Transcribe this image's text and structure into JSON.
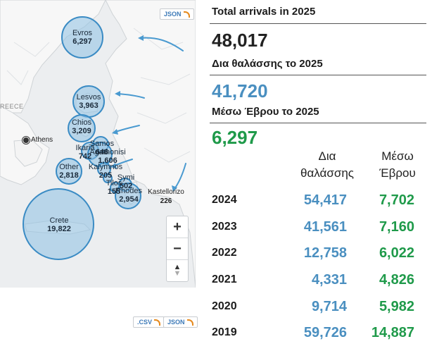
{
  "map": {
    "json_label": "JSON",
    "csv_label": ".CSV",
    "json_label_bottom": "JSON",
    "region_label": "REECE",
    "city_athens": "Athens",
    "kastellorizo_label": "Kastellorizo",
    "kastellorizo_value": "226",
    "zoom_in": "+",
    "zoom_out": "−",
    "reset_up": "▲",
    "reset_down": "▼",
    "bubbles": [
      {
        "name": "Evros",
        "value": "6,297"
      },
      {
        "name": "Lesvos",
        "value": "3,963"
      },
      {
        "name": "Chios",
        "value": "3,209"
      },
      {
        "name": "Samos",
        "value": "646"
      },
      {
        "name": "Ikaria",
        "value": "742"
      },
      {
        "name": "Agathonisi",
        "value": "1,606"
      },
      {
        "name": "Kalymnos",
        "value": "205"
      },
      {
        "name": "Other",
        "value": "2,818"
      },
      {
        "name": "Symi",
        "value": "502"
      },
      {
        "name": "Tilos",
        "value": "155"
      },
      {
        "name": "Rhodes",
        "value": "2,954"
      },
      {
        "name": "Crete",
        "value": "19,822"
      }
    ]
  },
  "stats": {
    "total_title": "Total arrivals in 2025",
    "total_value": "48,017",
    "sea_title": "Δια θαλάσσης το 2025",
    "sea_value": "41,720",
    "evros_title": "Μέσω Έβρου το 2025",
    "evros_value": "6,297",
    "col_sea_line1": "Δια",
    "col_sea_line2": "θαλάσσης",
    "col_evros_line1": "Μέσω",
    "col_evros_line2": "Έβρου",
    "colors": {
      "sea": "#4a8fc0",
      "evros": "#1f9a4a"
    },
    "rows": [
      {
        "year": "2024",
        "sea": "54,417",
        "evros": "7,702"
      },
      {
        "year": "2023",
        "sea": "41,561",
        "evros": "7,160"
      },
      {
        "year": "2022",
        "sea": "12,758",
        "evros": "6,022"
      },
      {
        "year": "2021",
        "sea": "4,331",
        "evros": "4,826"
      },
      {
        "year": "2020",
        "sea": "9,714",
        "evros": "5,982"
      },
      {
        "year": "2019",
        "sea": "59,726",
        "evros": "14,887"
      }
    ]
  }
}
